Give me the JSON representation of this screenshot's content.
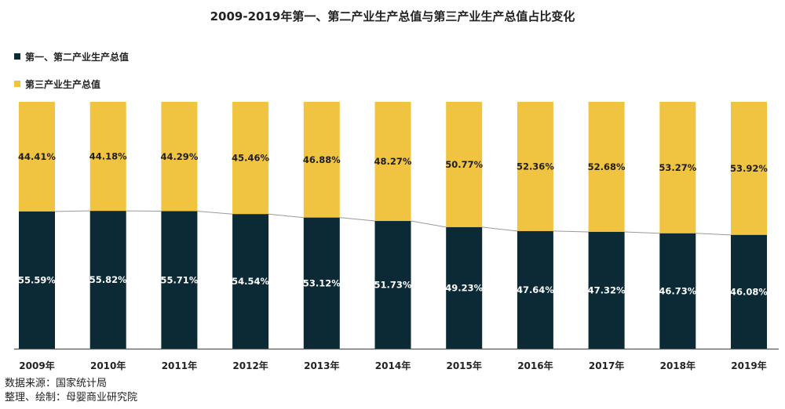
{
  "title": "2009-2019年第一、第二产业生产总值与第三产业生产总值占比变化",
  "legend": [
    {
      "label": "第一、第二产业生产总值",
      "color": "#0b2a36"
    },
    {
      "label": "第三产业生产总值",
      "color": "#f0c340"
    }
  ],
  "source": {
    "line1": "数据来源：国家统计局",
    "line2": "整理、绘制：母婴商业研究院"
  },
  "chart_data": {
    "type": "bar",
    "stacked": true,
    "title": "2009-2019年第一、第二产业生产总值与第三产业生产总值占比变化",
    "categories": [
      "2009年",
      "2010年",
      "2011年",
      "2012年",
      "2013年",
      "2014年",
      "2015年",
      "2016年",
      "2017年",
      "2018年",
      "2019年"
    ],
    "series": [
      {
        "name": "第一、第二产业生产总值",
        "color": "#0b2a36",
        "values": [
          55.59,
          55.82,
          55.71,
          54.54,
          53.12,
          51.73,
          49.23,
          47.64,
          47.32,
          46.73,
          46.08
        ],
        "labels": [
          "55.59%",
          "55.82%",
          "55.71%",
          "54.54%",
          "53.12%",
          "51.73%",
          "49.23%",
          "47.64%",
          "47.32%",
          "46.73%",
          "46.08%"
        ]
      },
      {
        "name": "第三产业生产总值",
        "color": "#f0c340",
        "values": [
          44.41,
          44.18,
          44.29,
          45.46,
          46.88,
          48.27,
          50.77,
          52.36,
          52.68,
          53.27,
          53.92
        ],
        "labels": [
          "44.41%",
          "44.18%",
          "44.29%",
          "45.46%",
          "46.88%",
          "48.27%",
          "50.77%",
          "52.36%",
          "52.68%",
          "53.27%",
          "53.92%"
        ]
      }
    ],
    "ylim": [
      0,
      100
    ],
    "connector_lines": true,
    "grid": false,
    "legend_position": "top-left",
    "xlabel": "",
    "ylabel": ""
  }
}
